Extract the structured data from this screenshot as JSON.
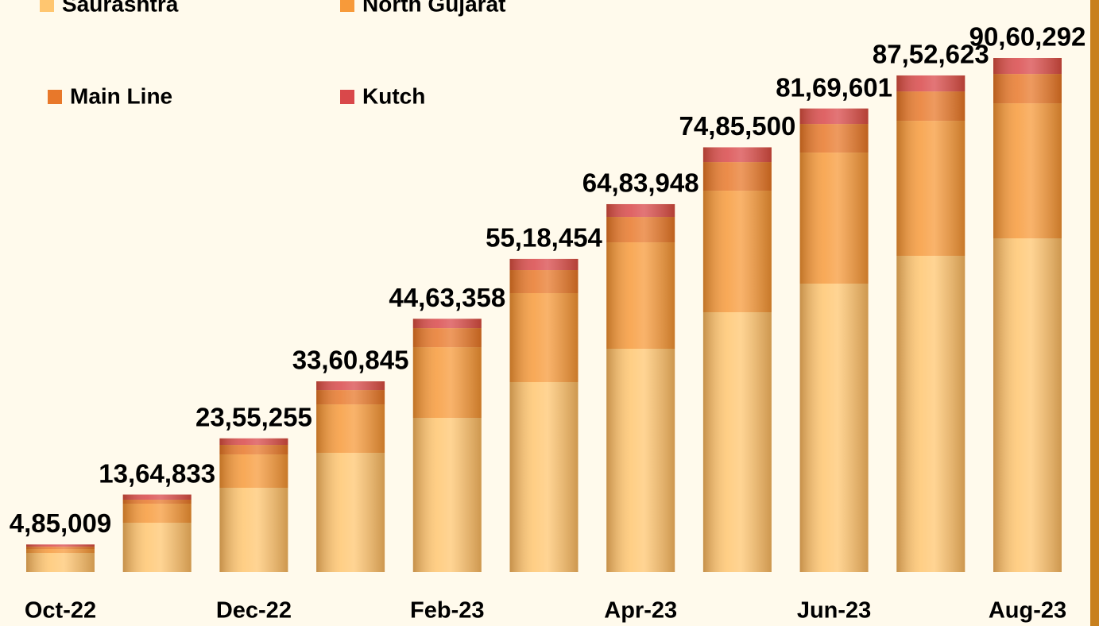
{
  "chart_data": {
    "type": "stacked_bar",
    "categories": [
      "Oct-22",
      null,
      "Dec-22",
      null,
      "Feb-23",
      null,
      "Apr-23",
      null,
      "Jun-23",
      null,
      "Aug-23"
    ],
    "series": [
      {
        "name": "Saurashtra",
        "color": "#FFC670",
        "values": [
          336000,
          868000,
          1484000,
          2100000,
          2716000,
          3347000,
          3935000,
          4579000,
          5083000,
          5573000,
          5881000
        ]
      },
      {
        "name": "North Gujarat",
        "color": "#F79A3A",
        "values": [
          70000,
          336000,
          588000,
          854000,
          1246000,
          1568000,
          1876000,
          2142000,
          2310000,
          2380000,
          2380000
        ]
      },
      {
        "name": "Main Line",
        "color": "#E8782A",
        "values": [
          40000,
          70000,
          168000,
          252000,
          336000,
          406000,
          448000,
          504000,
          504000,
          518000,
          518000
        ]
      },
      {
        "name": "Kutch",
        "color": "#D9484A",
        "values": [
          39009,
          90833,
          115255,
          154845,
          165358,
          197454,
          224948,
          260500,
          272601,
          281623,
          281292
        ]
      }
    ],
    "totals": [
      485009,
      1364833,
      2355255,
      3360845,
      4463358,
      5518454,
      6483948,
      7485500,
      8169601,
      8752623,
      9060292
    ],
    "total_labels": [
      "4,85,009",
      "13,64,833",
      "23,55,255",
      "33,60,845",
      "44,63,358",
      "55,18,454",
      "64,83,948",
      "74,85,500",
      "81,69,601",
      "87,52,623",
      "90,60,292"
    ]
  }
}
